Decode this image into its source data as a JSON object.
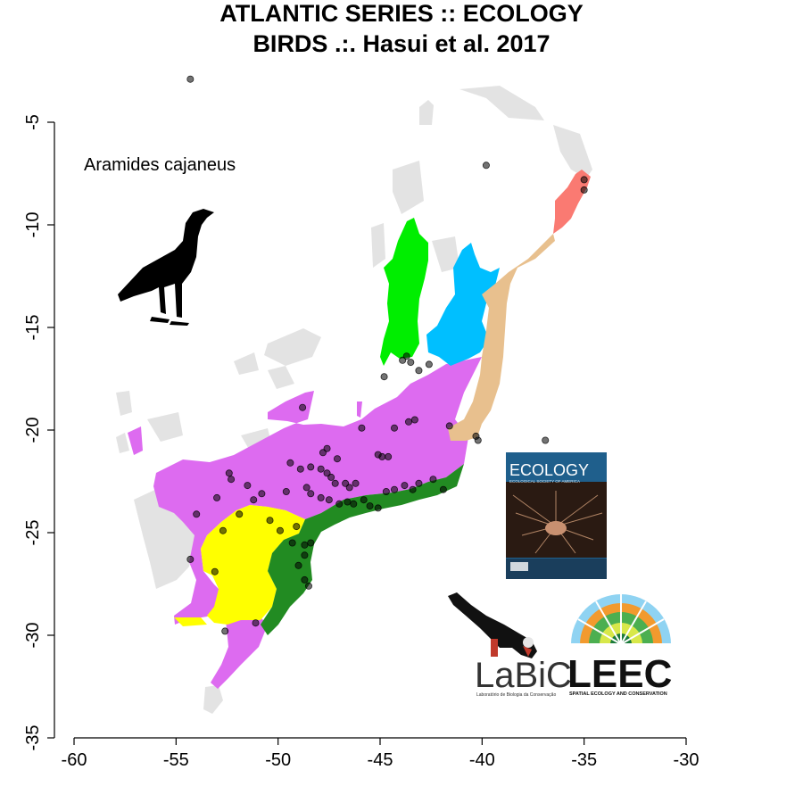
{
  "header": {
    "title_line1": "ATLANTIC SERIES :: ECOLOGY",
    "title_line2": "BIRDS .:. Hasui et al. 2017"
  },
  "map": {
    "species_label": "Aramides cajaneus",
    "x_ticks": [
      "-60",
      "-55",
      "-50",
      "-45",
      "-40",
      "-35",
      "-30"
    ],
    "y_ticks": [
      "-5",
      "-10",
      "-15",
      "-20",
      "-25",
      "-30",
      "-35"
    ],
    "xlim": [
      -60,
      -30
    ],
    "ylim": [
      -35,
      -5
    ],
    "region_colors": {
      "background": "#e3e3e3",
      "violet": "#dd6bf0",
      "green_coast": "#228b22",
      "yellow": "#ffff00",
      "bright_green": "#00ee00",
      "sky_blue": "#00bfff",
      "tan": "#e8c08e",
      "salmon": "#fa7a72"
    },
    "occurrences": [
      [
        -54.3,
        -2.9
      ],
      [
        -39.8,
        -7.1
      ],
      [
        -35.0,
        -7.8
      ],
      [
        -35.0,
        -8.3
      ],
      [
        -43.7,
        -16.4
      ],
      [
        -43.5,
        -16.7
      ],
      [
        -43.9,
        -16.6
      ],
      [
        -42.6,
        -16.8
      ],
      [
        -43.1,
        -17.1
      ],
      [
        -44.8,
        -17.4
      ],
      [
        -48.8,
        -18.9
      ],
      [
        -45.9,
        -19.9
      ],
      [
        -44.3,
        -19.9
      ],
      [
        -43.6,
        -19.6
      ],
      [
        -43.3,
        -19.5
      ],
      [
        -41.6,
        -19.8
      ],
      [
        -40.3,
        -20.3
      ],
      [
        -40.2,
        -20.5
      ],
      [
        -36.9,
        -20.5
      ],
      [
        -47.6,
        -20.9
      ],
      [
        -47.8,
        -21.1
      ],
      [
        -47.1,
        -21.4
      ],
      [
        -45.1,
        -21.2
      ],
      [
        -44.9,
        -21.3
      ],
      [
        -44.6,
        -21.3
      ],
      [
        -52.4,
        -22.1
      ],
      [
        -52.3,
        -22.4
      ],
      [
        -49.4,
        -21.6
      ],
      [
        -48.9,
        -21.9
      ],
      [
        -48.4,
        -21.8
      ],
      [
        -47.9,
        -21.9
      ],
      [
        -47.6,
        -22.1
      ],
      [
        -47.4,
        -22.3
      ],
      [
        -47.2,
        -22.6
      ],
      [
        -46.7,
        -22.6
      ],
      [
        -46.5,
        -22.8
      ],
      [
        -46.2,
        -22.6
      ],
      [
        -48.6,
        -22.8
      ],
      [
        -48.4,
        -23.1
      ],
      [
        -47.9,
        -23.3
      ],
      [
        -47.5,
        -23.4
      ],
      [
        -47.0,
        -23.6
      ],
      [
        -46.6,
        -23.5
      ],
      [
        -46.3,
        -23.6
      ],
      [
        -45.8,
        -23.4
      ],
      [
        -45.5,
        -23.7
      ],
      [
        -45.1,
        -23.8
      ],
      [
        -44.7,
        -23.0
      ],
      [
        -44.3,
        -22.9
      ],
      [
        -43.8,
        -22.7
      ],
      [
        -43.4,
        -22.9
      ],
      [
        -43.1,
        -22.6
      ],
      [
        -42.4,
        -22.4
      ],
      [
        -41.9,
        -22.9
      ],
      [
        -51.5,
        -22.7
      ],
      [
        -53.0,
        -23.3
      ],
      [
        -50.8,
        -23.1
      ],
      [
        -49.6,
        -23.0
      ],
      [
        -51.2,
        -23.4
      ],
      [
        -54.0,
        -24.1
      ],
      [
        -51.9,
        -24.1
      ],
      [
        -50.4,
        -24.4
      ],
      [
        -49.9,
        -24.9
      ],
      [
        -49.3,
        -25.5
      ],
      [
        -48.7,
        -25.6
      ],
      [
        -48.4,
        -25.5
      ],
      [
        -48.7,
        -26.1
      ],
      [
        -49.0,
        -26.6
      ],
      [
        -48.7,
        -27.3
      ],
      [
        -48.5,
        -27.6
      ],
      [
        -51.1,
        -29.4
      ],
      [
        -52.6,
        -29.8
      ],
      [
        -54.3,
        -26.3
      ],
      [
        -53.1,
        -26.9
      ],
      [
        -49.1,
        -24.7
      ],
      [
        -52.7,
        -24.9
      ]
    ]
  },
  "cover": {
    "journal": "ECOLOGY",
    "subtitle": "ECOLOGICAL SOCIETY OF AMERICA"
  },
  "logos": {
    "labic_name": "LaBiC",
    "labic_sub": "Laboratório de Biologia da Conservação",
    "leec_name": "LEEC",
    "leec_sub": "SPATIAL ECOLOGY AND CONSERVATION"
  }
}
